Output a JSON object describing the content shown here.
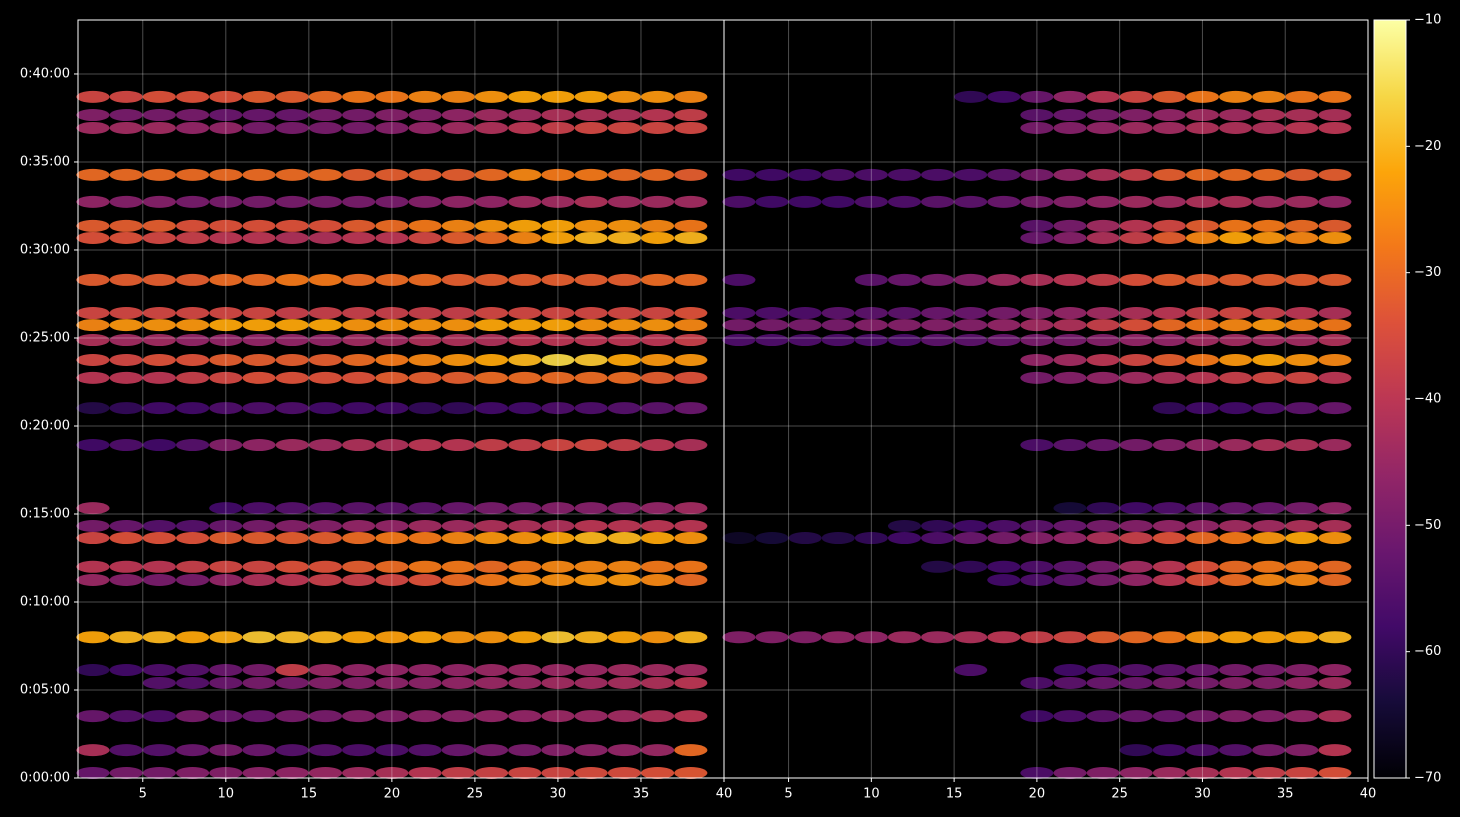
{
  "chart_data": [
    {
      "type": "heatmap",
      "grid": true,
      "x": [
        2,
        4,
        6,
        8,
        10,
        12,
        14,
        16,
        18,
        20,
        22,
        24,
        26,
        28,
        30,
        32,
        34,
        36,
        38
      ],
      "y": [
        17,
        95,
        211,
        324,
        368,
        480,
        675,
        720,
        818,
        859,
        920,
        1135,
        1261,
        1364,
        1425,
        1493,
        1544,
        1585,
        1698,
        1841,
        1882,
        1964,
        2056,
        2216,
        2260,
        2322
      ],
      "xlim": [
        1.1,
        40
      ],
      "xticks": [
        5,
        10,
        15,
        20,
        25,
        30,
        35,
        40
      ],
      "ylim": [
        0,
        2584
      ],
      "yticks": [
        {
          "value": 0,
          "label": "0:00:00"
        },
        {
          "value": 300,
          "label": "0:05:00"
        },
        {
          "value": 600,
          "label": "0:10:00"
        },
        {
          "value": 900,
          "label": "0:15:00"
        },
        {
          "value": 1200,
          "label": "0:20:00"
        },
        {
          "value": 1500,
          "label": "0:25:00"
        },
        {
          "value": 1800,
          "label": "0:30:00"
        },
        {
          "value": 2100,
          "label": "0:35:00"
        },
        {
          "value": 2400,
          "label": "0:40:00"
        }
      ],
      "values": [
        [
          -52,
          -50,
          -50,
          -48,
          -48,
          -47,
          -46,
          -45,
          -44,
          -42,
          -40,
          -38,
          -37,
          -36,
          -36,
          -35,
          -35,
          -34,
          -33
        ],
        [
          -42,
          -55,
          -55,
          -52,
          -50,
          -52,
          -55,
          -55,
          -56,
          -56,
          -55,
          -52,
          -50,
          -50,
          -48,
          -47,
          -46,
          -45,
          -30
        ],
        [
          -52,
          -55,
          -56,
          -50,
          -52,
          -52,
          -50,
          -50,
          -48,
          -48,
          -47,
          -47,
          -46,
          -46,
          -45,
          -45,
          -44,
          -42,
          -40
        ],
        [
          null,
          null,
          -55,
          -55,
          -52,
          -50,
          -50,
          -48,
          -48,
          -47,
          -47,
          -46,
          -45,
          -45,
          -44,
          -44,
          -43,
          -42,
          -40
        ],
        [
          -60,
          -58,
          -56,
          -55,
          -52,
          -50,
          -38,
          -45,
          -46,
          -46,
          -46,
          -46,
          -45,
          -45,
          -45,
          -45,
          -44,
          -44,
          -44
        ],
        [
          -22,
          -20,
          -20,
          -22,
          -21,
          -18,
          -19,
          -20,
          -22,
          -23,
          -22,
          -24,
          -24,
          -22,
          -18,
          -20,
          -22,
          -24,
          -20
        ],
        [
          -45,
          -48,
          -50,
          -50,
          -46,
          -42,
          -40,
          -38,
          -38,
          -36,
          -34,
          -30,
          -28,
          -26,
          -25,
          -24,
          -24,
          -26,
          -30
        ],
        [
          -40,
          -40,
          -40,
          -38,
          -36,
          -36,
          -34,
          -34,
          -32,
          -30,
          -28,
          -28,
          -30,
          -28,
          -26,
          -26,
          -26,
          -28,
          -28
        ],
        [
          -36,
          -34,
          -34,
          -34,
          -32,
          -32,
          -32,
          -32,
          -30,
          -28,
          -28,
          -26,
          -24,
          -24,
          -22,
          -20,
          -20,
          -22,
          -24
        ],
        [
          -50,
          -52,
          -55,
          -55,
          -52,
          -50,
          -48,
          -48,
          -46,
          -46,
          -44,
          -44,
          -42,
          -42,
          -42,
          -40,
          -40,
          -40,
          -40
        ],
        [
          -44,
          null,
          null,
          null,
          -58,
          -56,
          -55,
          -55,
          -54,
          -54,
          -54,
          -52,
          -50,
          -50,
          -48,
          -48,
          -48,
          -46,
          -44
        ],
        [
          -58,
          -56,
          -58,
          -55,
          -48,
          -46,
          -44,
          -44,
          -42,
          -42,
          -40,
          -40,
          -38,
          -38,
          -36,
          -36,
          -38,
          -40,
          -42
        ],
        [
          -62,
          -60,
          -58,
          -58,
          -56,
          -56,
          -56,
          -58,
          -58,
          -58,
          -60,
          -60,
          -58,
          -58,
          -56,
          -56,
          -55,
          -54,
          -52
        ],
        [
          -40,
          -40,
          -40,
          -38,
          -36,
          -34,
          -34,
          -34,
          -34,
          -32,
          -32,
          -32,
          -30,
          -30,
          -30,
          -30,
          -30,
          -32,
          -34
        ],
        [
          -36,
          -36,
          -34,
          -34,
          -32,
          -32,
          -32,
          -32,
          -30,
          -28,
          -26,
          -24,
          -22,
          -20,
          -16,
          -18,
          -22,
          -24,
          -24
        ],
        [
          -42,
          -44,
          -44,
          -46,
          -46,
          -46,
          -46,
          -46,
          -44,
          -44,
          -42,
          -42,
          -42,
          -40,
          -40,
          -40,
          -40,
          -40,
          -38
        ],
        [
          -26,
          -24,
          -24,
          -24,
          -22,
          -22,
          -22,
          -22,
          -24,
          -24,
          -24,
          -24,
          -22,
          -22,
          -22,
          -24,
          -24,
          -24,
          -26
        ],
        [
          -36,
          -36,
          -36,
          -36,
          -36,
          -36,
          -38,
          -38,
          -38,
          -38,
          -38,
          -38,
          -36,
          -36,
          -36,
          -36,
          -36,
          -36,
          -34
        ],
        [
          -32,
          -32,
          -32,
          -32,
          -30,
          -30,
          -28,
          -28,
          -30,
          -30,
          -30,
          -32,
          -32,
          -32,
          -32,
          -32,
          -32,
          -30,
          -30
        ],
        [
          -34,
          -34,
          -36,
          -38,
          -40,
          -40,
          -42,
          -42,
          -40,
          -40,
          -36,
          -32,
          -30,
          -26,
          -22,
          -20,
          -20,
          -22,
          -20
        ],
        [
          -32,
          -32,
          -32,
          -34,
          -34,
          -34,
          -34,
          -34,
          -32,
          -30,
          -28,
          -26,
          -24,
          -22,
          -22,
          -24,
          -24,
          -26,
          -28
        ],
        [
          -46,
          -48,
          -48,
          -50,
          -50,
          -50,
          -50,
          -50,
          -50,
          -50,
          -48,
          -46,
          -46,
          -44,
          -44,
          -42,
          -44,
          -44,
          -44
        ],
        [
          -30,
          -30,
          -30,
          -30,
          -30,
          -30,
          -30,
          -30,
          -32,
          -32,
          -32,
          -32,
          -30,
          -26,
          -28,
          -28,
          -30,
          -30,
          -32
        ],
        [
          -44,
          -44,
          -44,
          -46,
          -46,
          -50,
          -50,
          -50,
          -50,
          -48,
          -46,
          -44,
          -42,
          -40,
          -38,
          -36,
          -36,
          -36,
          -36
        ],
        [
          -48,
          -50,
          -50,
          -50,
          -52,
          -52,
          -52,
          -50,
          -50,
          -48,
          -48,
          -46,
          -44,
          -44,
          -42,
          -42,
          -42,
          -40,
          -38
        ],
        [
          -36,
          -36,
          -34,
          -34,
          -34,
          -32,
          -32,
          -30,
          -28,
          -28,
          -26,
          -26,
          -24,
          -22,
          -22,
          -22,
          -24,
          -24,
          -26
        ]
      ]
    },
    {
      "type": "heatmap",
      "grid": true,
      "x": [
        2,
        4,
        6,
        8,
        10,
        12,
        14,
        16,
        18,
        20,
        22,
        24,
        26,
        28,
        30,
        32,
        34,
        36,
        38
      ],
      "y": [
        17,
        95,
        211,
        324,
        368,
        480,
        675,
        720,
        818,
        859,
        920,
        1135,
        1261,
        1364,
        1425,
        1493,
        1544,
        1585,
        1698,
        1841,
        1882,
        1964,
        2056,
        2216,
        2260,
        2322
      ],
      "xlim": [
        1.1,
        40
      ],
      "xticks": [
        5,
        10,
        15,
        20,
        25,
        30,
        35,
        40
      ],
      "ylim": [
        0,
        2584
      ],
      "values": [
        [
          null,
          null,
          null,
          null,
          null,
          null,
          null,
          null,
          null,
          -56,
          -50,
          -48,
          -46,
          -44,
          -42,
          -40,
          -38,
          -36,
          -34
        ],
        [
          null,
          null,
          null,
          null,
          null,
          null,
          null,
          null,
          null,
          null,
          null,
          null,
          -60,
          -58,
          -56,
          -55,
          -50,
          -48,
          -40
        ],
        [
          null,
          null,
          null,
          null,
          null,
          null,
          null,
          null,
          null,
          -58,
          -56,
          -54,
          -52,
          -52,
          -50,
          -48,
          -48,
          -46,
          -42
        ],
        [
          null,
          null,
          null,
          null,
          null,
          null,
          null,
          null,
          null,
          -56,
          -54,
          -52,
          -52,
          -50,
          -50,
          -48,
          -48,
          -46,
          -44
        ],
        [
          null,
          null,
          null,
          null,
          null,
          null,
          null,
          -56,
          null,
          null,
          -58,
          -56,
          -55,
          -54,
          -52,
          -50,
          -50,
          -48,
          -46
        ],
        [
          -48,
          -48,
          -48,
          -46,
          -46,
          -44,
          -44,
          -42,
          -40,
          -38,
          -36,
          -32,
          -30,
          -28,
          -24,
          -22,
          -22,
          -22,
          -20
        ],
        [
          null,
          null,
          null,
          null,
          null,
          null,
          null,
          null,
          -58,
          -56,
          -54,
          -50,
          -46,
          -40,
          -34,
          -30,
          -26,
          -26,
          -30
        ],
        [
          null,
          null,
          null,
          null,
          null,
          null,
          -62,
          -60,
          -58,
          -56,
          -54,
          -50,
          -44,
          -40,
          -34,
          -30,
          -28,
          -28,
          -30
        ],
        [
          -66,
          -64,
          -62,
          -62,
          -60,
          -58,
          -56,
          -52,
          -50,
          -48,
          -46,
          -42,
          -38,
          -34,
          -30,
          -28,
          -24,
          -22,
          -24
        ],
        [
          null,
          null,
          null,
          null,
          null,
          -62,
          -60,
          -58,
          -56,
          -54,
          -52,
          -50,
          -48,
          -46,
          -46,
          -44,
          -44,
          -42,
          -42
        ],
        [
          null,
          null,
          null,
          null,
          null,
          null,
          null,
          null,
          null,
          null,
          -64,
          -60,
          -58,
          -56,
          -54,
          -52,
          -52,
          -50,
          -46
        ],
        [
          null,
          null,
          null,
          null,
          null,
          null,
          null,
          null,
          null,
          -56,
          -54,
          -52,
          -50,
          -48,
          -46,
          -44,
          -42,
          -42,
          -44
        ],
        [
          null,
          null,
          null,
          null,
          null,
          null,
          null,
          null,
          null,
          null,
          null,
          null,
          null,
          -60,
          -58,
          -58,
          -56,
          -54,
          -52
        ],
        [
          null,
          null,
          null,
          null,
          null,
          null,
          null,
          null,
          null,
          -50,
          -48,
          -46,
          -44,
          -42,
          -40,
          -38,
          -36,
          -36,
          -40
        ],
        [
          null,
          null,
          null,
          null,
          null,
          null,
          null,
          null,
          null,
          -46,
          -44,
          -40,
          -36,
          -32,
          -28,
          -24,
          -22,
          -24,
          -26
        ],
        [
          -56,
          -56,
          -56,
          -56,
          -56,
          -56,
          -54,
          -54,
          -52,
          -50,
          -50,
          -48,
          -46,
          -46,
          -44,
          -44,
          -44,
          -44,
          -42
        ],
        [
          -50,
          -50,
          -50,
          -50,
          -48,
          -48,
          -48,
          -48,
          -46,
          -44,
          -42,
          -38,
          -34,
          -30,
          -28,
          -26,
          -24,
          -26,
          -28
        ],
        [
          -56,
          -56,
          -56,
          -54,
          -54,
          -54,
          -52,
          -52,
          -50,
          -48,
          -46,
          -44,
          -42,
          -40,
          -38,
          -36,
          -38,
          -40,
          -42
        ],
        [
          -56,
          null,
          null,
          null,
          -54,
          -52,
          -50,
          -48,
          -44,
          -42,
          -40,
          -38,
          -34,
          -32,
          -32,
          -32,
          -32,
          -32,
          -32
        ],
        [
          null,
          null,
          null,
          null,
          null,
          null,
          null,
          null,
          null,
          -52,
          -48,
          -42,
          -38,
          -32,
          -26,
          -22,
          -24,
          -26,
          -24
        ],
        [
          null,
          null,
          null,
          null,
          null,
          null,
          null,
          null,
          null,
          -54,
          -50,
          -44,
          -40,
          -36,
          -32,
          -28,
          -28,
          -30,
          -32
        ],
        [
          -56,
          -58,
          -58,
          -58,
          -56,
          -56,
          -54,
          -54,
          -52,
          -50,
          -48,
          -46,
          -44,
          -44,
          -42,
          -42,
          -44,
          -44,
          -46
        ],
        [
          -58,
          -58,
          -58,
          -56,
          -56,
          -56,
          -56,
          -56,
          -54,
          -50,
          -46,
          -42,
          -38,
          -32,
          -30,
          -30,
          -30,
          -32,
          -32
        ],
        [
          null,
          null,
          null,
          null,
          null,
          null,
          null,
          null,
          null,
          -50,
          -48,
          -46,
          -44,
          -44,
          -42,
          -42,
          -42,
          -40,
          -40
        ],
        [
          null,
          null,
          null,
          null,
          null,
          null,
          null,
          null,
          null,
          -54,
          -52,
          -50,
          -48,
          -46,
          -44,
          -44,
          -42,
          -42,
          -42
        ],
        [
          null,
          null,
          null,
          null,
          null,
          null,
          null,
          -60,
          -58,
          -52,
          -46,
          -40,
          -36,
          -32,
          -28,
          -26,
          -26,
          -28,
          -28
        ]
      ]
    }
  ],
  "colorbar": {
    "colormap": "inferno",
    "clim": [
      -70,
      -10
    ],
    "cticks": [
      {
        "value": -10,
        "label": "−10"
      },
      {
        "value": -20,
        "label": "−20"
      },
      {
        "value": -30,
        "label": "−30"
      },
      {
        "value": -40,
        "label": "−40"
      },
      {
        "value": -50,
        "label": "−50"
      },
      {
        "value": -60,
        "label": "−60"
      },
      {
        "value": -70,
        "label": "−70"
      }
    ]
  }
}
